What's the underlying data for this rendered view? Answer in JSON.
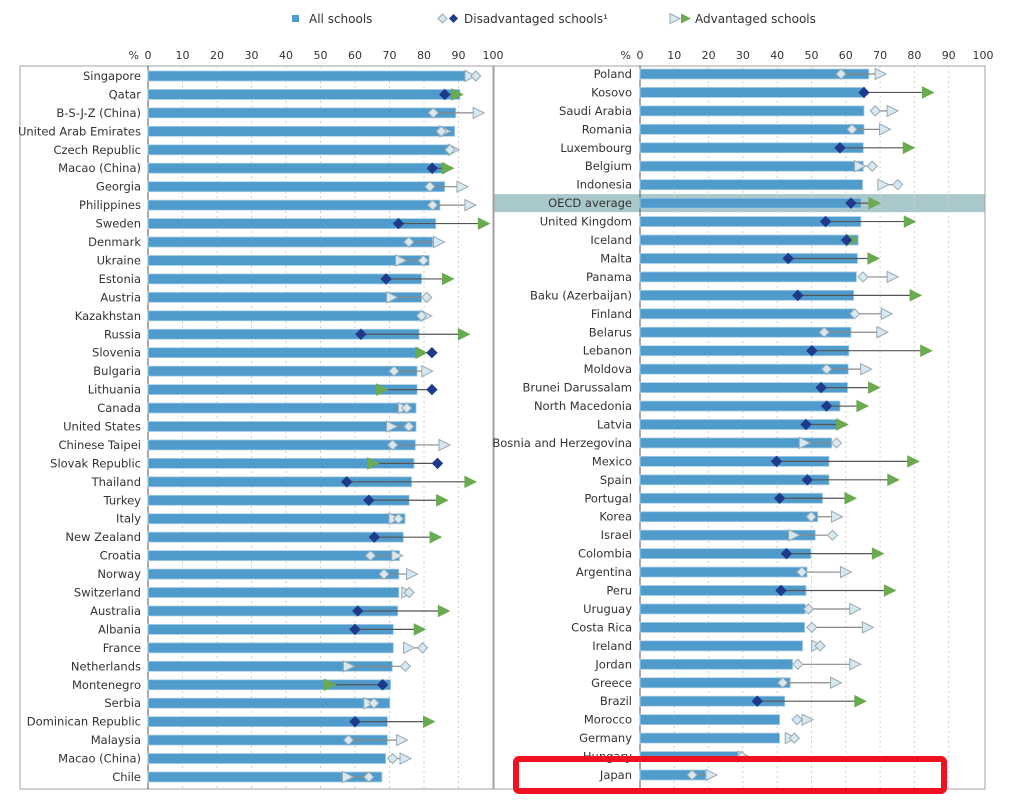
{
  "colors": {
    "bar": "#4f9bcb",
    "disadvantaged_significant": "#1f3a8a",
    "advantaged_significant": "#6aaa50",
    "not_significant_fill": "#d6e8f2",
    "not_significant_stroke": "#9aa8b0",
    "oecd_highlight": "#a8c8cc",
    "annotation_box": "#f01020"
  },
  "legend": {
    "all": "All schools",
    "disadvantaged": "Disadvantaged schools¹",
    "advantaged": "Advantaged schools"
  },
  "highlighted_row": "Japan",
  "chart_data": {
    "type": "bar",
    "unit_label": "%",
    "xlim": [
      0,
      100
    ],
    "ticks": [
      "0",
      "10",
      "20",
      "30",
      "40",
      "50",
      "60",
      "70",
      "80",
      "90",
      "100"
    ],
    "grid": true,
    "legend_placement": "top",
    "panels": [
      {
        "rows": [
          {
            "country": "Singapore",
            "all": 92.4,
            "disadvantaged": 95.0,
            "dis_sig": false,
            "advantaged": 93.3,
            "adv_sig": false
          },
          {
            "country": "Qatar",
            "all": 90.4,
            "disadvantaged": 86.0,
            "dis_sig": true,
            "advantaged": 89.5,
            "adv_sig": true
          },
          {
            "country": "B-S-J-Z (China)",
            "all": 89.2,
            "disadvantaged": 82.7,
            "dis_sig": false,
            "advantaged": 95.7,
            "adv_sig": false
          },
          {
            "country": "United Arab Emirates",
            "all": 88.9,
            "disadvantaged": 85.0,
            "dis_sig": false,
            "advantaged": 86.0,
            "adv_sig": false
          },
          {
            "country": "Czech Republic",
            "all": 87.3,
            "disadvantaged": 87.5,
            "dis_sig": false,
            "advantaged": 88.5,
            "adv_sig": false
          },
          {
            "country": "Macao (China)",
            "all": 86.0,
            "disadvantaged": 82.4,
            "dis_sig": true,
            "advantaged": 86.8,
            "adv_sig": true
          },
          {
            "country": "Georgia",
            "all": 86.0,
            "disadvantaged": 81.7,
            "dis_sig": false,
            "advantaged": 91.0,
            "adv_sig": false
          },
          {
            "country": "Philippines",
            "all": 84.6,
            "disadvantaged": 82.5,
            "dis_sig": false,
            "advantaged": 93.3,
            "adv_sig": false
          },
          {
            "country": "Sweden",
            "all": 83.4,
            "disadvantaged": 72.6,
            "dis_sig": true,
            "advantaged": 97.2,
            "adv_sig": true
          },
          {
            "country": "Denmark",
            "all": 82.5,
            "disadvantaged": 75.6,
            "dis_sig": false,
            "advantaged": 84.2,
            "adv_sig": false
          },
          {
            "country": "Ukraine",
            "all": 81.5,
            "disadvantaged": 79.8,
            "dis_sig": false,
            "advantaged": 73.2,
            "adv_sig": false
          },
          {
            "country": "Estonia",
            "all": 79.3,
            "disadvantaged": 69.0,
            "dis_sig": true,
            "advantaged": 86.8,
            "adv_sig": true
          },
          {
            "country": "Austria",
            "all": 79.3,
            "disadvantaged": 80.8,
            "dis_sig": false,
            "advantaged": 70.6,
            "adv_sig": false
          },
          {
            "country": "Kazakhstan",
            "all": 78.8,
            "disadvantaged": 79.3,
            "dis_sig": false,
            "advantaged": 80.5,
            "adv_sig": false
          },
          {
            "country": "Russia",
            "all": 78.6,
            "disadvantaged": 61.7,
            "dis_sig": true,
            "advantaged": 91.4,
            "adv_sig": true
          },
          {
            "country": "Slovenia",
            "all": 78.4,
            "disadvantaged": 82.3,
            "dis_sig": true,
            "advantaged": 79.1,
            "adv_sig": true
          },
          {
            "country": "Bulgaria",
            "all": 78.0,
            "disadvantaged": 71.3,
            "dis_sig": false,
            "advantaged": 80.8,
            "adv_sig": false
          },
          {
            "country": "Lithuania",
            "all": 78.0,
            "disadvantaged": 82.3,
            "dis_sig": true,
            "advantaged": 67.7,
            "adv_sig": true
          },
          {
            "country": "Canada",
            "all": 77.7,
            "disadvantaged": 75.0,
            "dis_sig": false,
            "advantaged": 74.0,
            "adv_sig": false
          },
          {
            "country": "United States",
            "all": 77.7,
            "disadvantaged": 75.6,
            "dis_sig": false,
            "advantaged": 70.6,
            "adv_sig": false
          },
          {
            "country": "Chinese Taipei",
            "all": 77.5,
            "disadvantaged": 70.9,
            "dis_sig": false,
            "advantaged": 85.8,
            "adv_sig": false
          },
          {
            "country": "Slovak Republic",
            "all": 77.1,
            "disadvantaged": 83.9,
            "dis_sig": true,
            "advantaged": 65.1,
            "adv_sig": true
          },
          {
            "country": "Thailand",
            "all": 76.4,
            "disadvantaged": 57.6,
            "dis_sig": true,
            "advantaged": 93.3,
            "adv_sig": true
          },
          {
            "country": "Turkey",
            "all": 75.7,
            "disadvantaged": 64.0,
            "dis_sig": true,
            "advantaged": 85.1,
            "adv_sig": true
          },
          {
            "country": "Italy",
            "all": 74.5,
            "disadvantaged": 72.6,
            "dis_sig": false,
            "advantaged": 71.3,
            "adv_sig": false
          },
          {
            "country": "New Zealand",
            "all": 74.0,
            "disadvantaged": 65.6,
            "dis_sig": true,
            "advantaged": 83.2,
            "adv_sig": true
          },
          {
            "country": "Croatia",
            "all": 72.9,
            "disadvantaged": 64.5,
            "dis_sig": false,
            "advantaged": 72.1,
            "adv_sig": false
          },
          {
            "country": "Norway",
            "all": 72.7,
            "disadvantaged": 68.4,
            "dis_sig": false,
            "advantaged": 76.4,
            "adv_sig": false
          },
          {
            "country": "Switzerland",
            "all": 72.7,
            "disadvantaged": 75.7,
            "dis_sig": false,
            "advantaged": 75.0,
            "adv_sig": false
          },
          {
            "country": "Australia",
            "all": 72.4,
            "disadvantaged": 60.8,
            "dis_sig": true,
            "advantaged": 85.6,
            "adv_sig": true
          },
          {
            "country": "Albania",
            "all": 71.1,
            "disadvantaged": 60.0,
            "dis_sig": true,
            "advantaged": 78.6,
            "adv_sig": true
          },
          {
            "country": "France",
            "all": 71.1,
            "disadvantaged": 79.6,
            "dis_sig": false,
            "advantaged": 75.5,
            "adv_sig": false
          },
          {
            "country": "Netherlands",
            "all": 70.8,
            "disadvantaged": 74.6,
            "dis_sig": false,
            "advantaged": 58.1,
            "adv_sig": false
          },
          {
            "country": "Montenegro",
            "all": 70.3,
            "disadvantaged": 68.0,
            "dis_sig": true,
            "advantaged": 52.6,
            "adv_sig": true
          },
          {
            "country": "Serbia",
            "all": 70.1,
            "disadvantaged": 65.5,
            "dis_sig": false,
            "advantaged": 64.0,
            "adv_sig": false
          },
          {
            "country": "Dominican Republic",
            "all": 69.4,
            "disadvantaged": 60.0,
            "dis_sig": true,
            "advantaged": 81.3,
            "adv_sig": true
          },
          {
            "country": "Malaysia",
            "all": 69.4,
            "disadvantaged": 58.1,
            "dis_sig": false,
            "advantaged": 73.5,
            "adv_sig": false
          },
          {
            "country": "Macao (China)",
            "all": 68.9,
            "disadvantaged": 70.9,
            "dis_sig": false,
            "advantaged": 74.5,
            "adv_sig": false
          },
          {
            "country": "Chile",
            "all": 67.8,
            "disadvantaged": 64.0,
            "dis_sig": false,
            "advantaged": 57.8,
            "adv_sig": false
          }
        ]
      },
      {
        "rows": [
          {
            "country": "Poland",
            "all": 66.7,
            "disadvantaged": 58.6,
            "dis_sig": false,
            "advantaged": 70.0,
            "adv_sig": false
          },
          {
            "country": "Kosovo",
            "all": 65.5,
            "disadvantaged": 65.3,
            "dis_sig": true,
            "advantaged": 83.8,
            "adv_sig": true
          },
          {
            "country": "Saudi Arabia",
            "all": 65.3,
            "disadvantaged": 68.6,
            "dis_sig": false,
            "advantaged": 73.5,
            "adv_sig": false
          },
          {
            "country": "Romania",
            "all": 65.3,
            "disadvantaged": 61.8,
            "dis_sig": false,
            "advantaged": 71.3,
            "adv_sig": false
          },
          {
            "country": "Luxembourg",
            "all": 65.1,
            "disadvantaged": 58.3,
            "dis_sig": true,
            "advantaged": 78.2,
            "adv_sig": true
          },
          {
            "country": "Belgium",
            "all": 65.1,
            "disadvantaged": 67.7,
            "dis_sig": false,
            "advantaged": 64.0,
            "adv_sig": false
          },
          {
            "country": "Indonesia",
            "all": 64.9,
            "disadvantaged": 75.1,
            "dis_sig": false,
            "advantaged": 70.8,
            "adv_sig": false
          },
          {
            "country": "OECD average",
            "all": 64.5,
            "disadvantaged": 61.5,
            "dis_sig": true,
            "advantaged": 68.2,
            "adv_sig": true
          },
          {
            "country": "United Kingdom",
            "all": 64.4,
            "disadvantaged": 54.1,
            "dis_sig": true,
            "advantaged": 78.5,
            "adv_sig": true
          },
          {
            "country": "Iceland",
            "all": 63.6,
            "disadvantaged": 60.2,
            "dis_sig": true,
            "advantaged": 61.7,
            "adv_sig": true
          },
          {
            "country": "Malta",
            "all": 63.4,
            "disadvantaged": 43.2,
            "dis_sig": true,
            "advantaged": 67.9,
            "adv_sig": true
          },
          {
            "country": "Panama",
            "all": 63.1,
            "disadvantaged": 65.0,
            "dis_sig": false,
            "advantaged": 73.5,
            "adv_sig": false
          },
          {
            "country": "Baku (Azerbaijan)",
            "all": 62.3,
            "disadvantaged": 46.0,
            "dis_sig": true,
            "advantaged": 80.2,
            "adv_sig": true
          },
          {
            "country": "Finland",
            "all": 62.3,
            "disadvantaged": 62.6,
            "dis_sig": false,
            "advantaged": 71.8,
            "adv_sig": false
          },
          {
            "country": "Belarus",
            "all": 61.5,
            "disadvantaged": 53.7,
            "dis_sig": false,
            "advantaged": 70.5,
            "adv_sig": false
          },
          {
            "country": "Lebanon",
            "all": 60.9,
            "disadvantaged": 50.1,
            "dis_sig": true,
            "advantaged": 83.3,
            "adv_sig": true
          },
          {
            "country": "Moldova",
            "all": 60.7,
            "disadvantaged": 54.4,
            "dis_sig": false,
            "advantaged": 65.8,
            "adv_sig": false
          },
          {
            "country": "Brunei Darussalam",
            "all": 60.5,
            "disadvantaged": 52.8,
            "dis_sig": true,
            "advantaged": 68.1,
            "adv_sig": true
          },
          {
            "country": "North Macedonia",
            "all": 58.3,
            "disadvantaged": 54.4,
            "dis_sig": true,
            "advantaged": 64.7,
            "adv_sig": true
          },
          {
            "country": "Latvia",
            "all": 57.6,
            "disadvantaged": 48.4,
            "dis_sig": true,
            "advantaged": 58.8,
            "adv_sig": true
          },
          {
            "country": "Bosnia and Herzegovina",
            "all": 55.9,
            "disadvantaged": 57.3,
            "dis_sig": false,
            "advantaged": 47.9,
            "adv_sig": false
          },
          {
            "country": "Mexico",
            "all": 55.1,
            "disadvantaged": 39.8,
            "dis_sig": true,
            "advantaged": 79.5,
            "adv_sig": true
          },
          {
            "country": "Spain",
            "all": 55.1,
            "disadvantaged": 48.8,
            "dis_sig": true,
            "advantaged": 73.7,
            "adv_sig": true
          },
          {
            "country": "Portugal",
            "all": 53.2,
            "disadvantaged": 40.7,
            "dis_sig": true,
            "advantaged": 61.2,
            "adv_sig": true
          },
          {
            "country": "Korea",
            "all": 51.8,
            "disadvantaged": 49.9,
            "dis_sig": false,
            "advantaged": 57.3,
            "adv_sig": false
          },
          {
            "country": "Israel",
            "all": 51.1,
            "disadvantaged": 56.1,
            "dis_sig": false,
            "advantaged": 44.8,
            "adv_sig": false
          },
          {
            "country": "Colombia",
            "all": 49.8,
            "disadvantaged": 42.7,
            "dis_sig": true,
            "advantaged": 69.2,
            "adv_sig": true
          },
          {
            "country": "Argentina",
            "all": 48.7,
            "disadvantaged": 47.2,
            "dis_sig": false,
            "advantaged": 59.9,
            "adv_sig": false
          },
          {
            "country": "Peru",
            "all": 48.4,
            "disadvantaged": 41.1,
            "dis_sig": true,
            "advantaged": 72.7,
            "adv_sig": true
          },
          {
            "country": "Uruguay",
            "all": 48.2,
            "disadvantaged": 49.1,
            "dis_sig": false,
            "advantaged": 62.6,
            "adv_sig": false
          },
          {
            "country": "Costa Rica",
            "all": 48.0,
            "disadvantaged": 50.1,
            "dis_sig": false,
            "advantaged": 66.3,
            "adv_sig": false
          },
          {
            "country": "Ireland",
            "all": 47.4,
            "disadvantaged": 52.5,
            "dis_sig": false,
            "advantaged": 51.5,
            "adv_sig": false
          },
          {
            "country": "Jordan",
            "all": 44.5,
            "disadvantaged": 46.0,
            "dis_sig": false,
            "advantaged": 62.6,
            "adv_sig": false
          },
          {
            "country": "Greece",
            "all": 43.8,
            "disadvantaged": 41.6,
            "dis_sig": false,
            "advantaged": 57.0,
            "adv_sig": false
          },
          {
            "country": "Brazil",
            "all": 42.2,
            "disadvantaged": 34.2,
            "dis_sig": true,
            "advantaged": 64.1,
            "adv_sig": true
          },
          {
            "country": "Morocco",
            "all": 40.7,
            "disadvantaged": 45.8,
            "dis_sig": false,
            "advantaged": 48.7,
            "adv_sig": false
          },
          {
            "country": "Germany",
            "all": 40.7,
            "disadvantaged": 45.0,
            "dis_sig": false,
            "advantaged": 43.8,
            "adv_sig": false
          },
          {
            "country": "Hungary",
            "all": 29.4,
            "disadvantaged": 29.7,
            "dis_sig": false,
            "advantaged": 30.0,
            "adv_sig": false
          },
          {
            "country": "Japan",
            "all": 19.1,
            "disadvantaged": 15.2,
            "dis_sig": false,
            "advantaged": 20.7,
            "adv_sig": false
          }
        ]
      }
    ]
  }
}
